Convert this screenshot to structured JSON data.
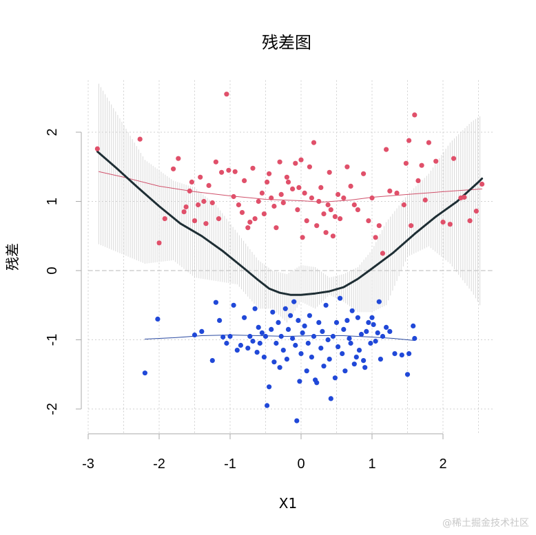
{
  "chart_data": {
    "type": "scatter",
    "title": "残差图",
    "xlabel": "X1",
    "ylabel": "残差",
    "xlim": [
      -3,
      2.7
    ],
    "ylim": [
      -2.35,
      2.75
    ],
    "xticks": [
      -3,
      -2,
      -1,
      0,
      1,
      2
    ],
    "yticks": [
      -2,
      -1,
      0,
      1,
      2
    ],
    "grid": true,
    "grid_style": "dotted",
    "zero_line": true,
    "colors": {
      "upper_points": "#e0506a",
      "lower_points": "#2048d8",
      "upper_trend": "#d0506a",
      "lower_trend": "#2848a0",
      "overall_trend": "#1e2e34",
      "band": "#cccccc",
      "grid": "#cfcfcf"
    },
    "series": [
      {
        "points": [
          [
            -2.87,
            1.76
          ],
          [
            -2.27,
            1.9
          ],
          [
            -2.0,
            0.4
          ],
          [
            -1.92,
            0.75
          ],
          [
            -1.8,
            1.47
          ],
          [
            -1.73,
            1.62
          ],
          [
            -1.65,
            0.85
          ],
          [
            -1.62,
            0.92
          ],
          [
            -1.57,
            1.15
          ],
          [
            -1.54,
            1.28
          ],
          [
            -1.5,
            0.72
          ],
          [
            -1.45,
            0.95
          ],
          [
            -1.42,
            1.35
          ],
          [
            -1.37,
            1.0
          ],
          [
            -1.34,
            0.68
          ],
          [
            -1.3,
            1.23
          ],
          [
            -1.25,
            0.98
          ],
          [
            -1.2,
            1.57
          ],
          [
            -1.16,
            0.75
          ],
          [
            -1.12,
            1.42
          ],
          [
            -1.05,
            2.55
          ],
          [
            -1.02,
            1.45
          ],
          [
            -0.95,
            1.07
          ],
          [
            -0.93,
            1.43
          ],
          [
            -0.88,
            0.95
          ],
          [
            -0.83,
            0.84
          ],
          [
            -0.8,
            1.3
          ],
          [
            -0.75,
            0.62
          ],
          [
            -0.72,
            0.7
          ],
          [
            -0.68,
            1.48
          ],
          [
            -0.65,
            0.75
          ],
          [
            -0.6,
            1.0
          ],
          [
            -0.55,
            1.12
          ],
          [
            -0.52,
            0.82
          ],
          [
            -0.48,
            1.28
          ],
          [
            -0.45,
            1.4
          ],
          [
            -0.42,
            1.05
          ],
          [
            -0.38,
            0.93
          ],
          [
            -0.35,
            0.62
          ],
          [
            -0.3,
            1.57
          ],
          [
            -0.28,
            1.1
          ],
          [
            -0.25,
            0.98
          ],
          [
            -0.2,
            1.35
          ],
          [
            -0.18,
            1.28
          ],
          [
            -0.12,
            1.18
          ],
          [
            -0.08,
            1.55
          ],
          [
            -0.05,
            0.88
          ],
          [
            -0.03,
            1.2
          ],
          [
            0.0,
            1.6
          ],
          [
            0.02,
            0.48
          ],
          [
            0.05,
            1.12
          ],
          [
            0.08,
            0.72
          ],
          [
            0.12,
            1.5
          ],
          [
            0.15,
            1.05
          ],
          [
            0.18,
            1.85
          ],
          [
            0.22,
            0.65
          ],
          [
            0.25,
            1.0
          ],
          [
            0.28,
            1.2
          ],
          [
            0.32,
            0.82
          ],
          [
            0.35,
            0.55
          ],
          [
            0.38,
            0.95
          ],
          [
            0.4,
            1.42
          ],
          [
            0.42,
            0.88
          ],
          [
            0.45,
            0.5
          ],
          [
            0.48,
            0.78
          ],
          [
            0.52,
            1.1
          ],
          [
            0.55,
            0.75
          ],
          [
            0.6,
            1.05
          ],
          [
            0.65,
            1.5
          ],
          [
            0.7,
            1.22
          ],
          [
            0.75,
            0.95
          ],
          [
            0.8,
            0.88
          ],
          [
            0.88,
            1.4
          ],
          [
            0.95,
            0.72
          ],
          [
            1.0,
            1.05
          ],
          [
            1.05,
            0.48
          ],
          [
            1.1,
            0.65
          ],
          [
            1.15,
            0.25
          ],
          [
            1.2,
            1.75
          ],
          [
            1.25,
            1.15
          ],
          [
            1.35,
            1.12
          ],
          [
            1.45,
            0.95
          ],
          [
            1.48,
            1.55
          ],
          [
            1.52,
            1.88
          ],
          [
            1.55,
            0.65
          ],
          [
            1.6,
            2.25
          ],
          [
            1.65,
            1.3
          ],
          [
            1.7,
            1.52
          ],
          [
            1.75,
            1.02
          ],
          [
            1.8,
            1.85
          ],
          [
            1.9,
            1.58
          ],
          [
            2.0,
            0.7
          ],
          [
            2.1,
            0.67
          ],
          [
            2.15,
            1.62
          ],
          [
            2.25,
            1.05
          ],
          [
            2.3,
            1.06
          ],
          [
            2.38,
            0.72
          ],
          [
            2.47,
            0.86
          ],
          [
            2.55,
            1.25
          ]
        ]
      },
      {
        "points": [
          [
            -2.2,
            -1.48
          ],
          [
            -2.02,
            -0.7
          ],
          [
            -1.5,
            -0.93
          ],
          [
            -1.4,
            -0.88
          ],
          [
            -1.25,
            -1.3
          ],
          [
            -1.2,
            -0.46
          ],
          [
            -1.15,
            -0.72
          ],
          [
            -1.1,
            -0.96
          ],
          [
            -1.05,
            -1.05
          ],
          [
            -1.0,
            -0.95
          ],
          [
            -0.95,
            -0.5
          ],
          [
            -0.9,
            -1.15
          ],
          [
            -0.85,
            -1.08
          ],
          [
            -0.8,
            -0.68
          ],
          [
            -0.75,
            -1.12
          ],
          [
            -0.72,
            -0.95
          ],
          [
            -0.68,
            -1.02
          ],
          [
            -0.65,
            -0.55
          ],
          [
            -0.62,
            -1.18
          ],
          [
            -0.6,
            -0.82
          ],
          [
            -0.58,
            -1.05
          ],
          [
            -0.55,
            -0.9
          ],
          [
            -0.52,
            -1.25
          ],
          [
            -0.5,
            -0.95
          ],
          [
            -0.48,
            -1.95
          ],
          [
            -0.45,
            -1.68
          ],
          [
            -0.42,
            -0.85
          ],
          [
            -0.4,
            -0.6
          ],
          [
            -0.38,
            -1.32
          ],
          [
            -0.35,
            -1.05
          ],
          [
            -0.32,
            -0.75
          ],
          [
            -0.3,
            -1.4
          ],
          [
            -0.28,
            -0.95
          ],
          [
            -0.25,
            -1.15
          ],
          [
            -0.22,
            -0.55
          ],
          [
            -0.2,
            -1.28
          ],
          [
            -0.18,
            -0.85
          ],
          [
            -0.15,
            -0.65
          ],
          [
            -0.12,
            -0.98
          ],
          [
            -0.1,
            -0.45
          ],
          [
            -0.08,
            -1.08
          ],
          [
            -0.06,
            -2.17
          ],
          [
            -0.04,
            -0.72
          ],
          [
            -0.02,
            -1.6
          ],
          [
            0.0,
            -1.2
          ],
          [
            0.02,
            -0.9
          ],
          [
            0.05,
            -0.8
          ],
          [
            0.08,
            -1.45
          ],
          [
            0.1,
            -1.05
          ],
          [
            0.12,
            -0.65
          ],
          [
            0.15,
            -1.25
          ],
          [
            0.18,
            -0.95
          ],
          [
            0.2,
            -1.58
          ],
          [
            0.22,
            -1.62
          ],
          [
            0.25,
            -0.75
          ],
          [
            0.28,
            -1.12
          ],
          [
            0.3,
            -0.88
          ],
          [
            0.32,
            -1.38
          ],
          [
            0.35,
            -0.5
          ],
          [
            0.38,
            -1.0
          ],
          [
            0.4,
            -1.28
          ],
          [
            0.42,
            -1.85
          ],
          [
            0.45,
            -0.95
          ],
          [
            0.48,
            -1.55
          ],
          [
            0.5,
            -0.75
          ],
          [
            0.52,
            -1.1
          ],
          [
            0.55,
            -0.4
          ],
          [
            0.58,
            -1.2
          ],
          [
            0.6,
            -0.85
          ],
          [
            0.62,
            -1.45
          ],
          [
            0.65,
            -0.72
          ],
          [
            0.68,
            -0.98
          ],
          [
            0.7,
            -1.05
          ],
          [
            0.72,
            -0.58
          ],
          [
            0.75,
            -1.35
          ],
          [
            0.78,
            -1.25
          ],
          [
            0.8,
            -0.68
          ],
          [
            0.82,
            -1.15
          ],
          [
            0.85,
            -0.92
          ],
          [
            0.88,
            -1.3
          ],
          [
            0.9,
            -1.4
          ],
          [
            0.92,
            -0.88
          ],
          [
            0.95,
            -0.75
          ],
          [
            0.98,
            -1.05
          ],
          [
            1.0,
            -0.68
          ],
          [
            1.02,
            -0.78
          ],
          [
            1.05,
            -1.02
          ],
          [
            1.08,
            -0.9
          ],
          [
            1.1,
            -0.45
          ],
          [
            1.12,
            -1.28
          ],
          [
            1.15,
            -0.95
          ],
          [
            1.2,
            -0.82
          ],
          [
            1.25,
            -0.88
          ],
          [
            1.32,
            -1.2
          ],
          [
            1.42,
            -1.22
          ],
          [
            1.5,
            -1.5
          ],
          [
            1.52,
            -1.2
          ],
          [
            1.58,
            -0.8
          ],
          [
            1.6,
            -0.98
          ]
        ]
      }
    ],
    "trend_lines": [
      {
        "points": [
          [
            -2.85,
            1.43
          ],
          [
            -2.5,
            1.35
          ],
          [
            -2.0,
            1.22
          ],
          [
            -1.5,
            1.14
          ],
          [
            -1.0,
            1.08
          ],
          [
            -0.5,
            1.03
          ],
          [
            0.0,
            1.01
          ],
          [
            0.3,
            0.99
          ],
          [
            0.7,
            1.02
          ],
          [
            1.0,
            1.06
          ],
          [
            1.5,
            1.1
          ],
          [
            2.0,
            1.14
          ],
          [
            2.55,
            1.18
          ]
        ]
      },
      {
        "points": [
          [
            -2.2,
            -0.99
          ],
          [
            -1.8,
            -0.97
          ],
          [
            -1.4,
            -0.94
          ],
          [
            -1.0,
            -0.93
          ],
          [
            -0.6,
            -0.94
          ],
          [
            -0.2,
            -0.95
          ],
          [
            0.2,
            -0.94
          ],
          [
            0.6,
            -0.94
          ],
          [
            1.0,
            -0.96
          ],
          [
            1.3,
            -0.98
          ],
          [
            1.6,
            -1.01
          ]
        ]
      },
      {
        "points": [
          [
            -2.87,
            1.72
          ],
          [
            -2.6,
            1.48
          ],
          [
            -2.3,
            1.2
          ],
          [
            -2.0,
            0.93
          ],
          [
            -1.7,
            0.68
          ],
          [
            -1.4,
            0.5
          ],
          [
            -1.1,
            0.28
          ],
          [
            -0.8,
            0.03
          ],
          [
            -0.6,
            -0.14
          ],
          [
            -0.45,
            -0.26
          ],
          [
            -0.3,
            -0.32
          ],
          [
            -0.15,
            -0.35
          ],
          [
            0.0,
            -0.35
          ],
          [
            0.2,
            -0.33
          ],
          [
            0.4,
            -0.3
          ],
          [
            0.6,
            -0.24
          ],
          [
            0.8,
            -0.12
          ],
          [
            1.0,
            0.03
          ],
          [
            1.3,
            0.26
          ],
          [
            1.6,
            0.53
          ],
          [
            1.9,
            0.78
          ],
          [
            2.2,
            1.0
          ],
          [
            2.5,
            1.28
          ],
          [
            2.55,
            1.33
          ]
        ]
      }
    ],
    "band": [
      [
        -2.85,
        0.38,
        2.7
      ],
      [
        -2.2,
        0.1,
        1.6
      ],
      [
        -1.8,
        0.15,
        1.3
      ],
      [
        -1.5,
        -0.1,
        1.2
      ],
      [
        -1.2,
        -0.15,
        0.95
      ],
      [
        -0.9,
        -0.2,
        0.55
      ],
      [
        -0.6,
        -0.55,
        0.15
      ],
      [
        -0.4,
        -0.55,
        0.0
      ],
      [
        -0.2,
        -0.75,
        -0.05
      ],
      [
        0.0,
        -0.45,
        0.08
      ],
      [
        0.2,
        -0.55,
        0.05
      ],
      [
        0.4,
        -0.35,
        -0.1
      ],
      [
        0.6,
        -0.45,
        -0.05
      ],
      [
        0.8,
        -0.6,
        0.05
      ],
      [
        1.0,
        -0.6,
        0.3
      ],
      [
        1.2,
        -0.5,
        0.7
      ],
      [
        1.5,
        0.2,
        1.1
      ],
      [
        1.8,
        0.35,
        1.4
      ],
      [
        2.1,
        0.1,
        1.85
      ],
      [
        2.4,
        -0.3,
        2.15
      ],
      [
        2.55,
        -0.55,
        2.25
      ]
    ]
  },
  "watermark": "@稀土掘金技术社区"
}
